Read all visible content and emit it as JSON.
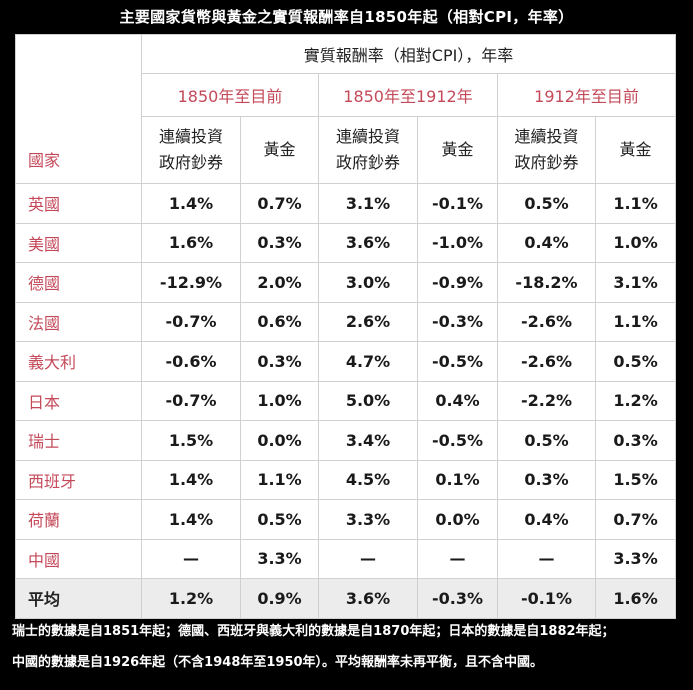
{
  "title": "主要國家貨幣與黃金之實質報酬率自1850年起（相對CPI，年率）",
  "header": {
    "main": "實質報酬率（相對CPI），年率",
    "country_label": "國家",
    "periods": [
      "1850年至目前",
      "1850年至1912年",
      "1912年至目前"
    ],
    "col_bonds_line1": "連續投資",
    "col_bonds_line2": "政府鈔券",
    "col_gold": "黃金"
  },
  "rows": [
    {
      "country": "英國",
      "values": [
        "1.4%",
        "0.7%",
        "3.1%",
        "-0.1%",
        "0.5%",
        "1.1%"
      ]
    },
    {
      "country": "美國",
      "values": [
        "1.6%",
        "0.3%",
        "3.6%",
        "-1.0%",
        "0.4%",
        "1.0%"
      ]
    },
    {
      "country": "德國",
      "values": [
        "-12.9%",
        "2.0%",
        "3.0%",
        "-0.9%",
        "-18.2%",
        "3.1%"
      ]
    },
    {
      "country": "法國",
      "values": [
        "-0.7%",
        "0.6%",
        "2.6%",
        "-0.3%",
        "-2.6%",
        "1.1%"
      ]
    },
    {
      "country": "義大利",
      "values": [
        "-0.6%",
        "0.3%",
        "4.7%",
        "-0.5%",
        "-2.6%",
        "0.5%"
      ]
    },
    {
      "country": "日本",
      "values": [
        "-0.7%",
        "1.0%",
        "5.0%",
        "0.4%",
        "-2.2%",
        "1.2%"
      ]
    },
    {
      "country": "瑞士",
      "values": [
        "1.5%",
        "0.0%",
        "3.4%",
        "-0.5%",
        "0.5%",
        "0.3%"
      ]
    },
    {
      "country": "西班牙",
      "values": [
        "1.4%",
        "1.1%",
        "4.5%",
        "0.1%",
        "0.3%",
        "1.5%"
      ]
    },
    {
      "country": "荷蘭",
      "values": [
        "1.4%",
        "0.5%",
        "3.3%",
        "0.0%",
        "0.4%",
        "0.7%"
      ]
    },
    {
      "country": "中國",
      "values": [
        "—",
        "3.3%",
        "—",
        "—",
        "—",
        "3.3%"
      ]
    }
  ],
  "average": {
    "country": "平均",
    "values": [
      "1.2%",
      "0.9%",
      "3.6%",
      "-0.3%",
      "-0.1%",
      "1.6%"
    ]
  },
  "footnote": {
    "line1": "瑞士的數據是自1851年起；德國、西班牙與義大利的數據是自1870年起；日本的數據是自1882年起；",
    "line2": "中國的數據是自1926年起（不含1948年至1950年）。平均報酬率未再平衡，且不含中國。"
  }
}
